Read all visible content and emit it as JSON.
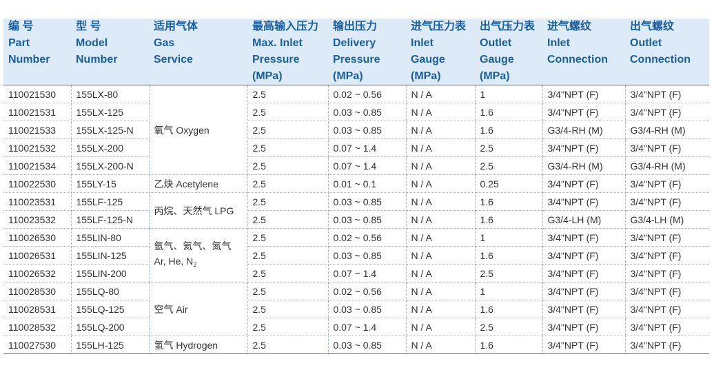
{
  "headers": [
    {
      "cn": "编 号",
      "en": [
        "Part",
        "Number"
      ]
    },
    {
      "cn": "型 号",
      "en": [
        "Model",
        "Number"
      ]
    },
    {
      "cn": "适用气体",
      "en": [
        "Gas",
        "Service"
      ]
    },
    {
      "cn": "最高输入压力",
      "en": [
        "Max. Inlet",
        "Pressure",
        "(MPa)"
      ]
    },
    {
      "cn": "输出压力",
      "en": [
        "Delivery",
        "Pressure",
        "(MPa)"
      ]
    },
    {
      "cn": "进气压力表",
      "en": [
        "Inlet",
        "Gauge",
        "(MPa)"
      ]
    },
    {
      "cn": "出气压力表",
      "en": [
        "Outlet",
        "Gauge",
        "(MPa)"
      ]
    },
    {
      "cn": "进气螺纹",
      "en": [
        "Inlet",
        "Connection"
      ]
    },
    {
      "cn": "出气螺纹",
      "en": [
        "Outlet",
        "Connection"
      ]
    }
  ],
  "gas_groups": [
    {
      "label": "氧气 Oxygen",
      "rowspan": 5
    },
    {
      "label": "乙炔 Acetylene",
      "rowspan": 1
    },
    {
      "label": "丙烷、天然气 LPG",
      "rowspan": 2
    },
    {
      "label": "氩气、氦气、氮气",
      "label2": "Ar, He, N",
      "label2_sub": "2",
      "rowspan": 3
    },
    {
      "label": "空气 Air",
      "rowspan": 3
    },
    {
      "label": "氢气 Hydrogen",
      "rowspan": 1
    }
  ],
  "rows": [
    {
      "part": "110021530",
      "model": "155LX-80",
      "max_inlet": "2.5",
      "delivery": "0.02 ~ 0.56",
      "inlet_gauge": "N / A",
      "outlet_gauge": "1",
      "inlet_conn": "3/4\"NPT (F)",
      "outlet_conn": "3/4\"NPT (F)"
    },
    {
      "part": "110021531",
      "model": "155LX-125",
      "max_inlet": "2.5",
      "delivery": "0.03 ~ 0.85",
      "inlet_gauge": "N / A",
      "outlet_gauge": "1.6",
      "inlet_conn": "3/4\"NPT (F)",
      "outlet_conn": "3/4\"NPT (F)"
    },
    {
      "part": "110021533",
      "model": "155LX-125-N",
      "max_inlet": "2.5",
      "delivery": "0.03 ~ 0.85",
      "inlet_gauge": "N / A",
      "outlet_gauge": "1.6",
      "inlet_conn": "G3/4-RH (M)",
      "outlet_conn": "G3/4-RH (M)"
    },
    {
      "part": "110021532",
      "model": "155LX-200",
      "max_inlet": "2.5",
      "delivery": "0.07 ~ 1.4",
      "inlet_gauge": "N / A",
      "outlet_gauge": "2.5",
      "inlet_conn": "3/4\"NPT (F)",
      "outlet_conn": "3/4\"NPT (F)"
    },
    {
      "part": "110021534",
      "model": "155LX-200-N",
      "max_inlet": "2.5",
      "delivery": "0.07 ~ 1.4",
      "inlet_gauge": "N / A",
      "outlet_gauge": "2.5",
      "inlet_conn": "G3/4-RH (M)",
      "outlet_conn": "G3/4-RH (M)"
    },
    {
      "part": "110022530",
      "model": "155LY-15",
      "max_inlet": "2.5",
      "delivery": "0.01 ~ 0.1",
      "inlet_gauge": "N / A",
      "outlet_gauge": "0.25",
      "inlet_conn": "3/4\"NPT (F)",
      "outlet_conn": "3/4\"NPT (F)"
    },
    {
      "part": "110023531",
      "model": "155LF-125",
      "max_inlet": "2.5",
      "delivery": "0.03 ~ 0.85",
      "inlet_gauge": "N / A",
      "outlet_gauge": "1.6",
      "inlet_conn": "3/4\"NPT (F)",
      "outlet_conn": "3/4\"NPT (F)"
    },
    {
      "part": "110023532",
      "model": "155LF-125-N",
      "max_inlet": "2.5",
      "delivery": "0.03 ~ 0.85",
      "inlet_gauge": "N / A",
      "outlet_gauge": "1.6",
      "inlet_conn": "G3/4-LH (M)",
      "outlet_conn": "G3/4-LH (M)"
    },
    {
      "part": "110026530",
      "model": "155LIN-80",
      "max_inlet": "2.5",
      "delivery": "0.02 ~ 0.56",
      "inlet_gauge": "N / A",
      "outlet_gauge": "1",
      "inlet_conn": "3/4\"NPT (F)",
      "outlet_conn": "3/4\"NPT (F)"
    },
    {
      "part": "110026531",
      "model": "155LIN-125",
      "max_inlet": "2.5",
      "delivery": "0.03 ~ 0.85",
      "inlet_gauge": "N / A",
      "outlet_gauge": "1.6",
      "inlet_conn": "3/4\"NPT (F)",
      "outlet_conn": "3/4\"NPT (F)"
    },
    {
      "part": "110026532",
      "model": "155LIN-200",
      "max_inlet": "2.5",
      "delivery": "0.07 ~ 1.4",
      "inlet_gauge": "N / A",
      "outlet_gauge": "2.5",
      "inlet_conn": "3/4\"NPT (F)",
      "outlet_conn": "3/4\"NPT (F)"
    },
    {
      "part": "110028530",
      "model": "155LQ-80",
      "max_inlet": "2.5",
      "delivery": "0.02 ~ 0.56",
      "inlet_gauge": "N / A",
      "outlet_gauge": "1",
      "inlet_conn": "3/4\"NPT (F)",
      "outlet_conn": "3/4\"NPT (F)"
    },
    {
      "part": "110028531",
      "model": "155LQ-125",
      "max_inlet": "2.5",
      "delivery": "0.03 ~ 0.85",
      "inlet_gauge": "N / A",
      "outlet_gauge": "1.6",
      "inlet_conn": "3/4\"NPT (F)",
      "outlet_conn": "3/4\"NPT (F)"
    },
    {
      "part": "110028532",
      "model": "155LQ-200",
      "max_inlet": "2.5",
      "delivery": "0.07 ~ 1.4",
      "inlet_gauge": "N / A",
      "outlet_gauge": "2.5",
      "inlet_conn": "3/4\"NPT (F)",
      "outlet_conn": "3/4\"NPT (F)"
    },
    {
      "part": "110027530",
      "model": "155LH-125",
      "max_inlet": "2.5",
      "delivery": "0.03 ~ 0.85",
      "inlet_gauge": "N / A",
      "outlet_gauge": "1.6",
      "inlet_conn": "3/4\"NPT (F)",
      "outlet_conn": "3/4\"NPT (F)"
    }
  ]
}
